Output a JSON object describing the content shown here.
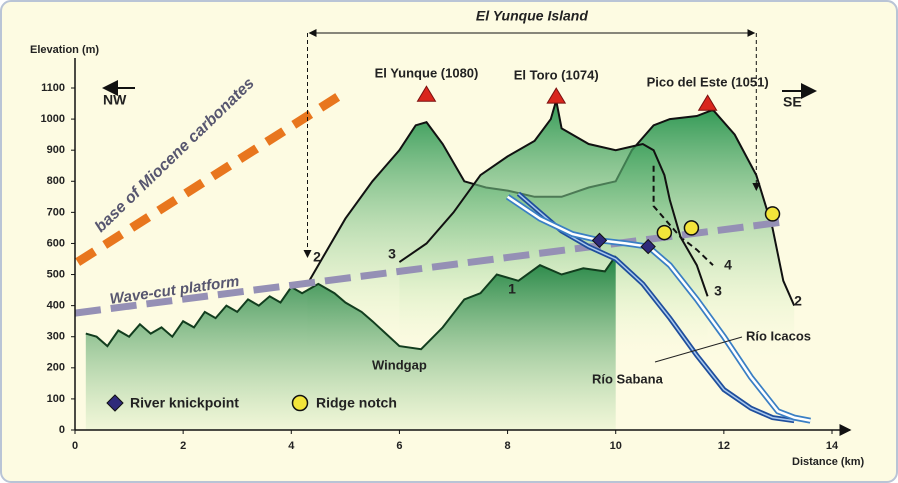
{
  "chart_data": {
    "type": "profile",
    "y_label": "Elevation (m)",
    "x_label": "Distance (km)",
    "xlim": [
      0,
      14
    ],
    "ylim": [
      0,
      1100
    ],
    "xticks": [
      0,
      2,
      4,
      6,
      8,
      10,
      12,
      14
    ],
    "yticks": [
      0,
      100,
      200,
      300,
      400,
      500,
      600,
      700,
      800,
      900,
      1000,
      1100
    ],
    "direction_labels": [
      "NW",
      "SE"
    ],
    "island": {
      "label": "El Yunque Island",
      "x": [
        4.3,
        12.6
      ]
    },
    "profiles": [
      {
        "name": "2",
        "color": "#111111",
        "fill": "#1e9a4c",
        "dash": false,
        "x": [
          4.3,
          4.6,
          5.0,
          5.5,
          6.0,
          6.3,
          6.5,
          6.8,
          7.2,
          7.6,
          8.0,
          8.5,
          9.0,
          9.5,
          10.0,
          10.3,
          10.7,
          11.0,
          11.5,
          11.8,
          12.2,
          12.6,
          12.9,
          13.1,
          13.3
        ],
        "values": [
          470,
          560,
          680,
          800,
          900,
          980,
          990,
          920,
          800,
          780,
          770,
          750,
          750,
          780,
          800,
          900,
          980,
          1000,
          1010,
          1030,
          950,
          820,
          650,
          480,
          400
        ]
      },
      {
        "name": "3",
        "color": "#111111",
        "fill": "#1e9a4c",
        "dash": false,
        "x": [
          6.0,
          6.5,
          7.0,
          7.5,
          8.0,
          8.5,
          8.8,
          8.9,
          9.0,
          9.5,
          10.0,
          10.5,
          10.7,
          10.9,
          11.0,
          11.2,
          11.5,
          11.7
        ],
        "values": [
          540,
          600,
          700,
          820,
          880,
          930,
          1000,
          1060,
          970,
          920,
          900,
          920,
          900,
          820,
          740,
          620,
          530,
          430
        ]
      },
      {
        "name": "1",
        "color": "#123d1e",
        "fill": "#158a3e",
        "dash": false,
        "x": [
          0.2,
          0.4,
          0.6,
          0.8,
          1.0,
          1.2,
          1.4,
          1.6,
          1.8,
          2.0,
          2.2,
          2.4,
          2.6,
          2.8,
          3.0,
          3.2,
          3.4,
          3.6,
          3.8,
          4.0,
          4.2,
          4.5,
          4.8,
          5.0,
          5.3,
          5.5,
          6.0,
          6.4,
          6.8,
          7.2,
          7.5,
          7.8,
          8.2,
          8.6,
          9.0,
          9.4,
          9.8,
          10.0
        ],
        "values": [
          310,
          300,
          270,
          320,
          300,
          340,
          310,
          330,
          300,
          350,
          330,
          380,
          360,
          400,
          380,
          420,
          400,
          430,
          410,
          460,
          440,
          470,
          440,
          410,
          380,
          350,
          270,
          260,
          330,
          420,
          440,
          500,
          480,
          530,
          500,
          520,
          510,
          560
        ]
      },
      {
        "name": "4",
        "color": "#111111",
        "fill": null,
        "dash": true,
        "x": [
          10.7,
          10.7,
          10.9,
          11.2,
          11.5,
          11.8
        ],
        "values": [
          850,
          720,
          680,
          620,
          580,
          530
        ]
      }
    ],
    "lines": [
      {
        "name": "base of Miocene carbonates",
        "color": "#e8761e",
        "x": [
          0.05,
          5.0
        ],
        "values": [
          540,
          1087
        ]
      },
      {
        "name": "Wave-cut platform",
        "color": "#9590b5",
        "x": [
          0.0,
          13.1
        ],
        "values": [
          376,
          669
        ]
      }
    ],
    "rivers": [
      {
        "name": "Río Icacos",
        "color": "#1f4e9c",
        "x": [
          8.2,
          8.6,
          9.0,
          9.5,
          10.0,
          10.5,
          11.0,
          11.5,
          12.0,
          12.5,
          12.9,
          13.3
        ],
        "values": [
          760,
          700,
          640,
          590,
          550,
          470,
          360,
          240,
          130,
          70,
          40,
          30
        ]
      },
      {
        "name": "Río Sabana",
        "color": "#3a7fc4",
        "x": [
          8.0,
          8.6,
          9.2,
          9.7,
          10.2,
          10.6,
          11.0,
          11.5,
          12.0,
          12.5,
          13.0,
          13.3,
          13.6
        ],
        "values": [
          750,
          680,
          630,
          610,
          600,
          590,
          530,
          420,
          300,
          170,
          60,
          40,
          30
        ]
      }
    ],
    "windgap": "Windgap",
    "peaks": {
      "color": "#d9261c",
      "names": [
        "El Yunque (1080)",
        "El Toro (1074)",
        "Pico del Este (1051)"
      ],
      "x": [
        6.5,
        8.9,
        11.7
      ],
      "values": [
        1080,
        1074,
        1051
      ]
    },
    "knickpoints": {
      "name": "River knickpoint",
      "color": "#2e2a7a",
      "x": [
        9.7,
        10.6
      ],
      "values": [
        610,
        590
      ]
    },
    "notches": {
      "name": "Ridge notch",
      "color": "#f3e53a",
      "x": [
        10.9,
        11.4,
        12.9
      ],
      "values": [
        635,
        650,
        695
      ]
    }
  }
}
